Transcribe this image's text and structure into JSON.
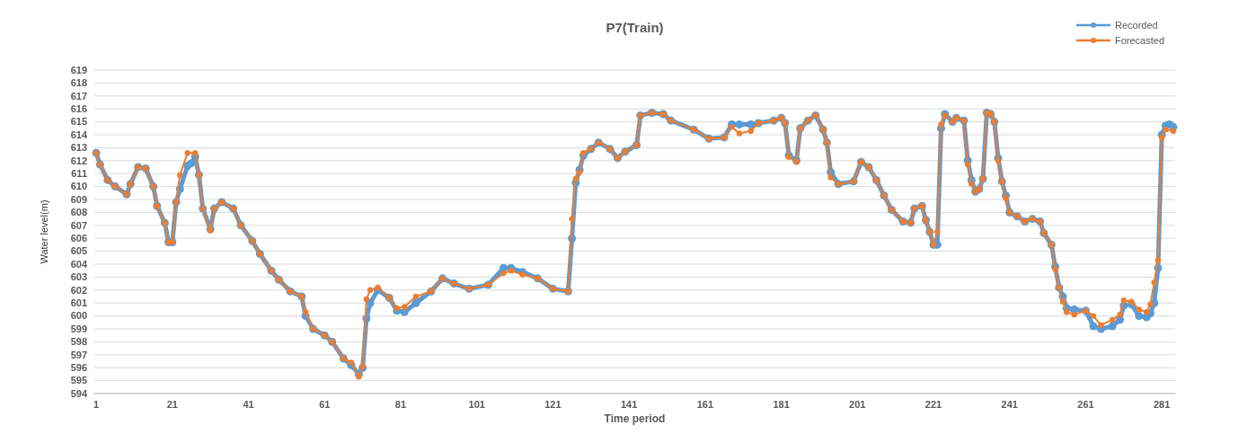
{
  "chart_data": {
    "type": "line",
    "title": "P7(Train)",
    "xlabel": "Time period",
    "ylabel": "Water level(m)",
    "xlim": [
      0.5,
      284.5
    ],
    "xticks": [
      1,
      21,
      41,
      61,
      81,
      101,
      121,
      141,
      161,
      181,
      201,
      221,
      241,
      261,
      281
    ],
    "ylim": [
      594,
      619
    ],
    "yticks": [
      594,
      595,
      596,
      597,
      598,
      599,
      600,
      601,
      602,
      603,
      604,
      605,
      606,
      607,
      608,
      609,
      610,
      611,
      612,
      613,
      614,
      615,
      616,
      617,
      618,
      619
    ],
    "grid": "y",
    "legend": "top right",
    "marker": "circle",
    "line_style": "solid",
    "series": [
      {
        "name": "Recorded",
        "color": "#5b9bd5",
        "x": [
          1,
          2,
          4,
          6,
          9,
          10,
          12,
          14,
          16,
          17,
          19,
          20,
          21,
          22,
          23,
          25,
          26,
          27,
          28,
          29,
          31,
          32,
          34,
          37,
          39,
          42,
          44,
          47,
          49,
          52,
          55,
          56,
          58,
          61,
          63,
          66,
          68,
          70,
          71,
          72,
          73,
          75,
          78,
          80,
          82,
          85,
          89,
          92,
          95,
          99,
          104,
          108,
          110,
          113,
          117,
          121,
          125,
          126,
          127,
          128,
          129,
          131,
          133,
          136,
          138,
          140,
          143,
          144,
          147,
          150,
          152,
          158,
          162,
          166,
          168,
          170,
          173,
          175,
          179,
          181,
          182,
          183,
          185,
          186,
          188,
          190,
          192,
          193,
          194,
          196,
          200,
          202,
          204,
          206,
          208,
          210,
          213,
          215,
          216,
          218,
          219,
          220,
          221,
          222,
          223,
          224,
          226,
          227,
          229,
          230,
          231,
          232,
          233,
          234,
          235,
          236,
          237,
          238,
          239,
          240,
          241,
          243,
          245,
          247,
          249,
          250,
          252,
          253,
          254,
          255,
          256,
          258,
          261,
          263,
          265,
          268,
          270,
          271,
          273,
          275,
          277,
          278,
          279,
          280,
          281,
          282,
          283,
          284
        ],
        "values": [
          612.6,
          611.7,
          610.5,
          610.0,
          609.4,
          610.2,
          611.5,
          611.4,
          610.0,
          608.5,
          607.2,
          605.7,
          605.7,
          608.8,
          609.8,
          611.6,
          611.8,
          612.3,
          610.9,
          608.3,
          606.7,
          608.3,
          608.8,
          608.3,
          607.0,
          605.8,
          604.8,
          603.5,
          602.8,
          601.9,
          601.5,
          600.0,
          599.0,
          598.5,
          598.0,
          596.7,
          596.2,
          595.5,
          596.0,
          599.8,
          601.0,
          602.0,
          601.4,
          600.4,
          600.3,
          601.0,
          601.9,
          602.9,
          602.5,
          602.1,
          602.4,
          603.7,
          603.7,
          603.4,
          602.9,
          602.1,
          601.9,
          606.0,
          610.3,
          611.3,
          612.4,
          612.9,
          613.4,
          612.9,
          612.2,
          612.7,
          613.2,
          615.5,
          615.7,
          615.6,
          615.1,
          614.4,
          613.7,
          613.8,
          614.8,
          614.8,
          614.8,
          614.9,
          615.1,
          615.3,
          614.9,
          612.4,
          612.0,
          614.5,
          615.1,
          615.5,
          614.4,
          613.4,
          611.1,
          610.2,
          610.4,
          611.9,
          611.5,
          610.5,
          609.3,
          608.2,
          607.3,
          607.2,
          608.3,
          608.5,
          607.4,
          606.5,
          605.5,
          605.5,
          614.5,
          615.6,
          615.0,
          615.3,
          615.1,
          612.0,
          610.5,
          609.6,
          609.8,
          610.6,
          615.7,
          615.6,
          615.0,
          612.2,
          610.4,
          609.3,
          608.0,
          607.7,
          607.3,
          607.5,
          607.3,
          606.4,
          605.5,
          603.8,
          602.2,
          601.5,
          600.6,
          600.5,
          600.4,
          599.2,
          599.0,
          599.2,
          599.7,
          600.8,
          600.9,
          600.0,
          599.9,
          600.2,
          601.0,
          603.7,
          614.0,
          614.7,
          614.8,
          614.6
        ]
      },
      {
        "name": "Forecasted",
        "color": "#ed7d31",
        "x": [
          1,
          2,
          4,
          6,
          9,
          10,
          12,
          14,
          16,
          17,
          19,
          20,
          21,
          22,
          23,
          25,
          27,
          28,
          29,
          31,
          32,
          34,
          37,
          39,
          42,
          44,
          47,
          49,
          52,
          55,
          56,
          58,
          61,
          63,
          66,
          68,
          70,
          71,
          72,
          73,
          75,
          78,
          80,
          82,
          85,
          89,
          92,
          95,
          99,
          104,
          108,
          110,
          113,
          117,
          121,
          125,
          126,
          127,
          128,
          129,
          131,
          133,
          136,
          138,
          140,
          143,
          144,
          147,
          150,
          152,
          158,
          162,
          166,
          168,
          170,
          173,
          175,
          179,
          181,
          182,
          183,
          185,
          186,
          188,
          190,
          192,
          193,
          194,
          196,
          200,
          202,
          204,
          206,
          208,
          210,
          213,
          215,
          216,
          218,
          219,
          220,
          221,
          222,
          223,
          224,
          226,
          227,
          229,
          230,
          231,
          232,
          233,
          234,
          235,
          236,
          237,
          238,
          239,
          240,
          241,
          243,
          245,
          247,
          249,
          250,
          252,
          253,
          254,
          255,
          256,
          258,
          261,
          263,
          265,
          268,
          270,
          271,
          273,
          275,
          277,
          278,
          279,
          280,
          281,
          282,
          284
        ],
        "values": [
          612.6,
          611.7,
          610.5,
          610.0,
          609.4,
          610.2,
          611.5,
          611.4,
          610.0,
          608.5,
          607.2,
          605.7,
          605.7,
          608.8,
          610.9,
          612.6,
          612.6,
          610.9,
          608.3,
          606.6,
          608.3,
          608.8,
          608.3,
          607.0,
          605.8,
          604.8,
          603.5,
          602.8,
          601.9,
          601.5,
          600.3,
          599.0,
          598.5,
          598.0,
          596.7,
          596.4,
          595.3,
          596.1,
          601.3,
          602.0,
          602.2,
          601.4,
          600.6,
          600.7,
          601.5,
          601.9,
          602.9,
          602.5,
          602.1,
          602.4,
          603.3,
          603.5,
          603.2,
          602.9,
          602.1,
          601.9,
          607.5,
          610.6,
          611.1,
          612.6,
          612.9,
          613.4,
          612.9,
          612.2,
          612.7,
          613.2,
          615.5,
          615.7,
          615.6,
          615.1,
          614.4,
          613.7,
          613.8,
          614.6,
          614.1,
          614.3,
          614.9,
          615.1,
          615.3,
          614.9,
          612.3,
          611.9,
          614.5,
          615.1,
          615.5,
          614.4,
          613.4,
          610.7,
          610.2,
          610.4,
          611.9,
          611.5,
          610.5,
          609.3,
          608.2,
          607.3,
          607.2,
          608.3,
          608.5,
          607.4,
          606.5,
          605.5,
          606.5,
          614.8,
          615.5,
          615.0,
          615.3,
          615.1,
          611.7,
          610.2,
          609.6,
          609.8,
          610.6,
          615.7,
          615.6,
          615.0,
          612.0,
          610.4,
          609.1,
          608.0,
          607.7,
          607.3,
          607.5,
          607.3,
          606.4,
          605.5,
          603.6,
          602.2,
          601.1,
          600.3,
          600.1,
          600.4,
          600.0,
          599.3,
          599.7,
          600.1,
          601.2,
          601.1,
          600.5,
          600.3,
          600.9,
          602.6,
          604.3,
          613.8,
          614.4,
          614.3
        ]
      }
    ]
  }
}
